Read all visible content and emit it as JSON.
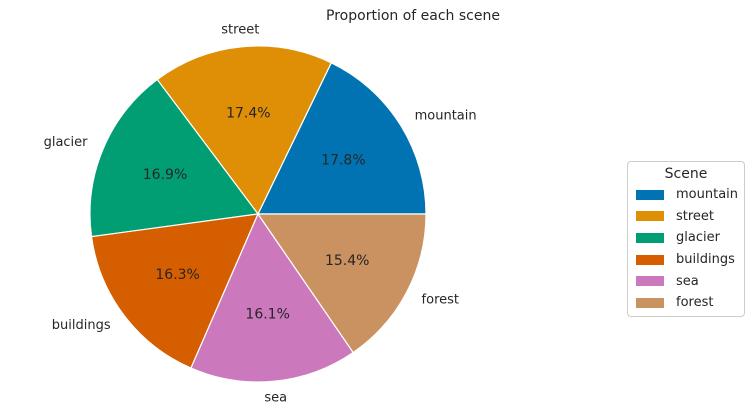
{
  "chart_data": {
    "type": "pie",
    "title": "Proportion of each scene",
    "categories": [
      "mountain",
      "street",
      "glacier",
      "buildings",
      "sea",
      "forest"
    ],
    "values": [
      17.8,
      17.4,
      16.9,
      16.3,
      16.1,
      15.4
    ],
    "value_labels": [
      "17.8%",
      "17.4%",
      "16.9%",
      "16.3%",
      "16.1%",
      "15.4%"
    ],
    "colors": [
      "#0173b2",
      "#de8f05",
      "#029e73",
      "#d55e00",
      "#cc78bc",
      "#ca9161"
    ],
    "start_angle_deg": 0,
    "direction": "counterclockwise",
    "legend": {
      "title": "Scene",
      "placement": "right"
    }
  }
}
